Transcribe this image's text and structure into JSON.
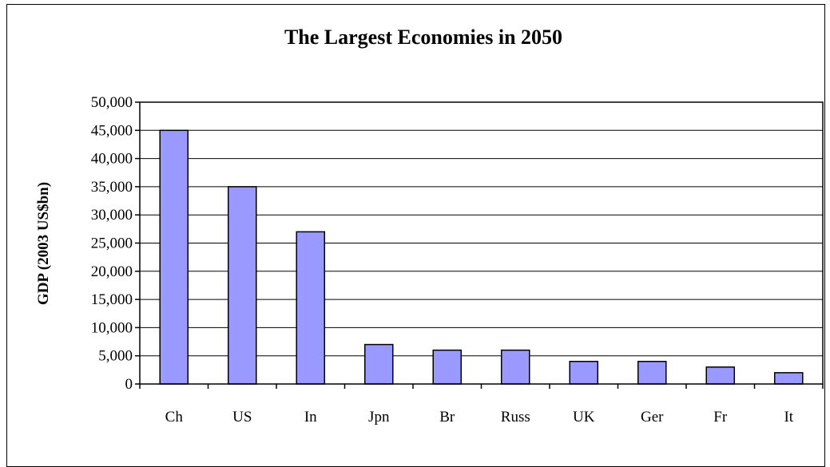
{
  "chart_data": {
    "type": "bar",
    "title": "The Largest Economies in 2050",
    "xlabel": "",
    "ylabel": "GDP (2003 US$bn)",
    "categories": [
      "Ch",
      "US",
      "In",
      "Jpn",
      "Br",
      "Russ",
      "UK",
      "Ger",
      "Fr",
      "It"
    ],
    "values": [
      45000,
      35000,
      27000,
      7000,
      6000,
      6000,
      4000,
      4000,
      3000,
      2000
    ],
    "ylim": [
      0,
      50000
    ],
    "yticks": [
      0,
      5000,
      10000,
      15000,
      20000,
      25000,
      30000,
      35000,
      40000,
      45000,
      50000
    ],
    "ytick_labels": [
      "0",
      "5,000",
      "10,000",
      "15,000",
      "20,000",
      "25,000",
      "30,000",
      "35,000",
      "40,000",
      "45,000",
      "50,000"
    ],
    "grid": true,
    "bar_color": "#9999ff"
  }
}
